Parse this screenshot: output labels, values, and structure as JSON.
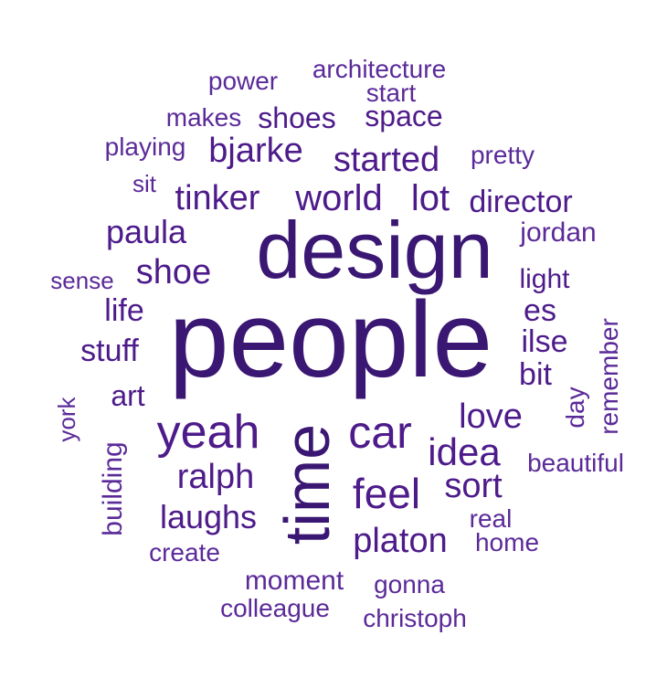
{
  "colors": {
    "background": "#ffffff",
    "word_dark": "#3a1772",
    "word_medium": "#4d1b8a",
    "word_light": "#5b2a99"
  },
  "words": [
    {
      "text": "people"
    },
    {
      "text": "design"
    },
    {
      "text": "time"
    },
    {
      "text": "yeah"
    },
    {
      "text": "car"
    },
    {
      "text": "feel"
    },
    {
      "text": "idea"
    },
    {
      "text": "world"
    },
    {
      "text": "lot"
    },
    {
      "text": "tinker"
    },
    {
      "text": "started"
    },
    {
      "text": "bjarke"
    },
    {
      "text": "shoe"
    },
    {
      "text": "paula"
    },
    {
      "text": "ralph"
    },
    {
      "text": "laughs"
    },
    {
      "text": "platon"
    },
    {
      "text": "love"
    },
    {
      "text": "sort"
    },
    {
      "text": "director"
    },
    {
      "text": "stuff"
    },
    {
      "text": "life"
    },
    {
      "text": "art"
    },
    {
      "text": "es"
    },
    {
      "text": "ilse"
    },
    {
      "text": "bit"
    },
    {
      "text": "light"
    },
    {
      "text": "jordan"
    },
    {
      "text": "space"
    },
    {
      "text": "shoes"
    },
    {
      "text": "start"
    },
    {
      "text": "architecture"
    },
    {
      "text": "power"
    },
    {
      "text": "makes"
    },
    {
      "text": "playing"
    },
    {
      "text": "pretty"
    },
    {
      "text": "sit"
    },
    {
      "text": "sense"
    },
    {
      "text": "york"
    },
    {
      "text": "building"
    },
    {
      "text": "create"
    },
    {
      "text": "moment"
    },
    {
      "text": "gonna"
    },
    {
      "text": "colleague"
    },
    {
      "text": "christoph"
    },
    {
      "text": "real"
    },
    {
      "text": "home"
    },
    {
      "text": "beautiful"
    },
    {
      "text": "remember"
    },
    {
      "text": "day"
    }
  ]
}
